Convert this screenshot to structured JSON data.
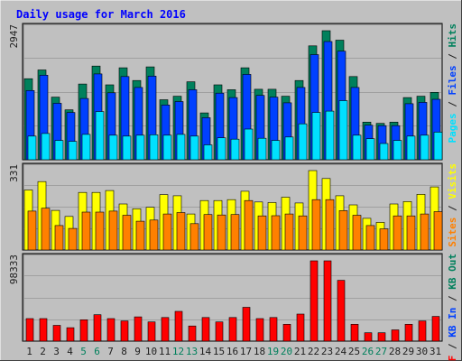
{
  "chart_data": [
    {
      "type": "bar",
      "title": "Daily usage for March 2016",
      "categories": [
        "1",
        "2",
        "3",
        "4",
        "5",
        "6",
        "7",
        "8",
        "9",
        "10",
        "11",
        "12",
        "13",
        "14",
        "15",
        "16",
        "17",
        "18",
        "19",
        "20",
        "21",
        "22",
        "23",
        "24",
        "25",
        "26",
        "27",
        "28",
        "29",
        "30",
        "31"
      ],
      "weekend_days": [
        "5",
        "6",
        "12",
        "13",
        "19",
        "20",
        "26",
        "27"
      ],
      "ytick": "2947",
      "ylim": [
        0,
        2947
      ],
      "legend": [
        "Pages",
        "Files",
        "Hits"
      ],
      "series": [
        {
          "name": "Hits",
          "color": "#00805c",
          "values": [
            1850,
            2050,
            1430,
            1140,
            1730,
            2140,
            1710,
            2100,
            1810,
            2120,
            1370,
            1450,
            1780,
            1070,
            1710,
            1600,
            2100,
            1610,
            1610,
            1450,
            1810,
            2600,
            2947,
            2730,
            1900,
            860,
            830,
            860,
            1420,
            1450,
            1540
          ]
        },
        {
          "name": "Files",
          "color": "#0040ff",
          "values": [
            1580,
            1930,
            1290,
            1080,
            1400,
            1960,
            1530,
            1900,
            1650,
            1910,
            1250,
            1330,
            1600,
            960,
            1520,
            1420,
            1950,
            1470,
            1430,
            1300,
            1650,
            2400,
            2700,
            2480,
            1650,
            790,
            780,
            780,
            1280,
            1310,
            1380
          ]
        },
        {
          "name": "Pages",
          "color": "#00e0ff",
          "values": [
            540,
            600,
            440,
            420,
            580,
            1100,
            560,
            540,
            560,
            570,
            560,
            580,
            540,
            340,
            500,
            470,
            700,
            490,
            440,
            520,
            820,
            1080,
            1110,
            1350,
            560,
            480,
            370,
            440,
            540,
            560,
            630
          ]
        }
      ]
    },
    {
      "type": "bar",
      "categories": [
        "1",
        "2",
        "3",
        "4",
        "5",
        "6",
        "7",
        "8",
        "9",
        "10",
        "11",
        "12",
        "13",
        "14",
        "15",
        "16",
        "17",
        "18",
        "19",
        "20",
        "21",
        "22",
        "23",
        "24",
        "25",
        "26",
        "27",
        "28",
        "29",
        "30",
        "31"
      ],
      "ytick": "331",
      "ylim": [
        0,
        331
      ],
      "legend": [
        "Sites",
        "Visits"
      ],
      "series": [
        {
          "name": "Visits",
          "color": "#ffff00",
          "values": [
            250,
            285,
            165,
            140,
            240,
            240,
            248,
            192,
            172,
            178,
            231,
            226,
            150,
            206,
            206,
            210,
            245,
            200,
            198,
            220,
            196,
            331,
            298,
            226,
            188,
            132,
            115,
            192,
            202,
            232,
            263
          ]
        },
        {
          "name": "Sites",
          "color": "#ff8000",
          "values": [
            162,
            174,
            102,
            90,
            158,
            158,
            162,
            145,
            120,
            125,
            150,
            156,
            110,
            148,
            146,
            148,
            206,
            142,
            143,
            150,
            142,
            210,
            210,
            164,
            145,
            102,
            88,
            142,
            142,
            150,
            160
          ]
        }
      ]
    },
    {
      "type": "bar",
      "categories": [
        "1",
        "2",
        "3",
        "4",
        "5",
        "6",
        "7",
        "8",
        "9",
        "10",
        "11",
        "12",
        "13",
        "14",
        "15",
        "16",
        "17",
        "18",
        "19",
        "20",
        "21",
        "22",
        "23",
        "24",
        "25",
        "26",
        "27",
        "28",
        "29",
        "30",
        "31"
      ],
      "ytick": "98333",
      "ylim": [
        0,
        98333
      ],
      "legend": [
        "KB F",
        "KB In",
        "KB Out"
      ],
      "series": [
        {
          "name": "KB F",
          "color": "#ff0000",
          "values": [
            27600,
            27600,
            19300,
            16500,
            26200,
            32400,
            27600,
            24800,
            29700,
            23500,
            28900,
            36500,
            18600,
            28900,
            23500,
            28900,
            41400,
            27600,
            28900,
            20700,
            33100,
            98333,
            98333,
            74500,
            20700,
            10300,
            10300,
            13800,
            20700,
            24800,
            30300
          ]
        }
      ]
    }
  ],
  "right_labels": {
    "top": [
      {
        "text": "Pages",
        "color": "#00e0ff"
      },
      {
        "text": " / ",
        "color": "#202020"
      },
      {
        "text": "Files",
        "color": "#0040ff"
      },
      {
        "text": " / ",
        "color": "#202020"
      },
      {
        "text": "Hits",
        "color": "#00805c"
      }
    ],
    "middle": [
      {
        "text": "Sites",
        "color": "#ff8000"
      },
      {
        "text": " / ",
        "color": "#202020"
      },
      {
        "text": "Visits",
        "color": "#ffff00"
      }
    ],
    "bottom": [
      {
        "text": "KB F",
        "color": "#ff0000"
      },
      {
        "text": " / ",
        "color": "#202020"
      },
      {
        "text": "KB In",
        "color": "#0040ff"
      },
      {
        "text": " / ",
        "color": "#202020"
      },
      {
        "text": "KB Out",
        "color": "#00805c"
      }
    ]
  },
  "colors": {
    "background": "#c0c0c0",
    "title": "#0000ff",
    "label": "#202020",
    "weekend_label": "#00805c"
  }
}
